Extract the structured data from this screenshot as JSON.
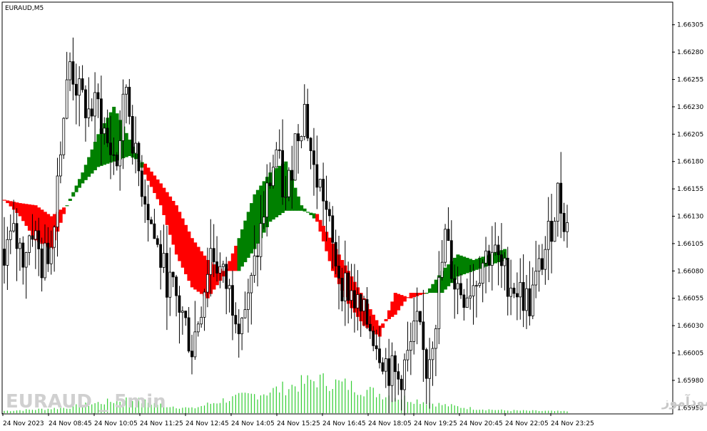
{
  "chart_data": {
    "type": "candlestick",
    "symbol_label": "EURAUD,M5",
    "timeframe": "M5",
    "y_ticks": [
      "1.66305",
      "1.66280",
      "1.66255",
      "1.66230",
      "1.66205",
      "1.66180",
      "1.66155",
      "1.66130",
      "1.66105",
      "1.66080",
      "1.66055",
      "1.66030",
      "1.66005",
      "1.65980",
      "1.65955"
    ],
    "ylim": [
      1.6595,
      1.66325
    ],
    "x_ticks": [
      "24 Nov 2023",
      "24 Nov 08:45",
      "24 Nov 10:05",
      "24 Nov 11:25",
      "24 Nov 12:45",
      "24 Nov 14:05",
      "24 Nov 15:25",
      "24 Nov 16:45",
      "24 Nov 18:05",
      "24 Nov 19:25",
      "24 Nov 20:45",
      "24 Nov 22:05",
      "24 Nov 23:25"
    ],
    "indicator_colors": {
      "up": "#008000",
      "down": "#ff0000"
    },
    "candle_color": "#000000",
    "volume_color": "#32cd32",
    "price_path": [
      [
        0,
        1.661
      ],
      [
        3,
        1.6611
      ],
      [
        6,
        1.66095
      ],
      [
        9,
        1.6612
      ],
      [
        12,
        1.66085
      ],
      [
        15,
        1.66105
      ],
      [
        18,
        1.662
      ],
      [
        21,
        1.6627
      ],
      [
        24,
        1.6624
      ],
      [
        27,
        1.66225
      ],
      [
        30,
        1.6623
      ],
      [
        33,
        1.66195
      ],
      [
        36,
        1.6618
      ],
      [
        39,
        1.6625
      ],
      [
        42,
        1.6618
      ],
      [
        45,
        1.6615
      ],
      [
        48,
        1.6611
      ],
      [
        51,
        1.6608
      ],
      [
        54,
        1.6606
      ],
      [
        57,
        1.6604
      ],
      [
        60,
        1.6601
      ],
      [
        63,
        1.6605
      ],
      [
        66,
        1.661
      ],
      [
        69,
        1.6608
      ],
      [
        72,
        1.6606
      ],
      [
        75,
        1.6604
      ],
      [
        78,
        1.6605
      ],
      [
        81,
        1.661
      ],
      [
        84,
        1.6615
      ],
      [
        87,
        1.6619
      ],
      [
        90,
        1.6614
      ],
      [
        93,
        1.662
      ],
      [
        96,
        1.6623
      ],
      [
        99,
        1.6617
      ],
      [
        102,
        1.6615
      ],
      [
        105,
        1.661
      ],
      [
        108,
        1.6607
      ],
      [
        111,
        1.6606
      ],
      [
        114,
        1.6604
      ],
      [
        117,
        1.6603
      ],
      [
        120,
        1.6601
      ],
      [
        123,
        1.6599
      ],
      [
        126,
        1.6598
      ],
      [
        129,
        1.66
      ],
      [
        132,
        1.6603
      ],
      [
        135,
        1.6599
      ],
      [
        138,
        1.6604
      ],
      [
        141,
        1.6611
      ],
      [
        144,
        1.6607
      ],
      [
        147,
        1.6606
      ],
      [
        150,
        1.6607
      ],
      [
        153,
        1.6609
      ],
      [
        156,
        1.661
      ],
      [
        159,
        1.6608
      ],
      [
        162,
        1.6607
      ],
      [
        165,
        1.6606
      ],
      [
        168,
        1.6605
      ],
      [
        171,
        1.6608
      ],
      [
        174,
        1.6611
      ],
      [
        177,
        1.6615
      ],
      [
        180,
        1.6612
      ]
    ],
    "indicator_band": [
      [
        0,
        1.66145,
        1.66145,
        "down"
      ],
      [
        5,
        1.66142,
        1.6613,
        "down"
      ],
      [
        10,
        1.6614,
        1.66108,
        "down"
      ],
      [
        15,
        1.6613,
        1.661,
        "down"
      ],
      [
        20,
        1.6614,
        1.6614,
        "up"
      ],
      [
        25,
        1.6616,
        1.6617,
        "up"
      ],
      [
        30,
        1.66175,
        1.66205,
        "up"
      ],
      [
        35,
        1.6618,
        1.6623,
        "up"
      ],
      [
        40,
        1.66185,
        1.662,
        "up"
      ],
      [
        45,
        1.66178,
        1.66168,
        "down"
      ],
      [
        50,
        1.6616,
        1.6614,
        "down"
      ],
      [
        55,
        1.6614,
        1.66095,
        "down"
      ],
      [
        60,
        1.6611,
        1.66065,
        "down"
      ],
      [
        65,
        1.6609,
        1.66055,
        "down"
      ],
      [
        70,
        1.6608,
        1.66075,
        "down"
      ],
      [
        75,
        1.6608,
        1.6611,
        "up"
      ],
      [
        80,
        1.661,
        1.6615,
        "up"
      ],
      [
        85,
        1.66125,
        1.6617,
        "up"
      ],
      [
        90,
        1.66135,
        1.6618,
        "up"
      ],
      [
        95,
        1.66135,
        1.6614,
        "up"
      ],
      [
        100,
        1.66132,
        1.66125,
        "down"
      ],
      [
        105,
        1.66105,
        1.6608,
        "down"
      ],
      [
        110,
        1.6608,
        1.6605,
        "down"
      ],
      [
        115,
        1.66055,
        1.6603,
        "down"
      ],
      [
        120,
        1.6603,
        1.6602,
        "down"
      ],
      [
        125,
        1.6604,
        1.6606,
        "down"
      ],
      [
        130,
        1.6606,
        1.66055,
        "down"
      ],
      [
        135,
        1.6606,
        1.6606,
        "up"
      ],
      [
        140,
        1.6606,
        1.6608,
        "up"
      ],
      [
        145,
        1.66075,
        1.66095,
        "up"
      ],
      [
        150,
        1.6608,
        1.6609,
        "up"
      ],
      [
        155,
        1.66085,
        1.66095,
        "up"
      ],
      [
        160,
        1.6609,
        1.661,
        "up"
      ]
    ],
    "volume_profile": [
      [
        0,
        0.05
      ],
      [
        10,
        0.08
      ],
      [
        20,
        0.12
      ],
      [
        30,
        0.22
      ],
      [
        40,
        0.3
      ],
      [
        50,
        0.18
      ],
      [
        60,
        0.1
      ],
      [
        70,
        0.28
      ],
      [
        80,
        0.4
      ],
      [
        90,
        0.55
      ],
      [
        100,
        0.72
      ],
      [
        110,
        0.6
      ],
      [
        120,
        0.42
      ],
      [
        130,
        0.3
      ],
      [
        140,
        0.18
      ],
      [
        150,
        0.1
      ],
      [
        160,
        0.06
      ],
      [
        170,
        0.05
      ],
      [
        180,
        0.04
      ]
    ]
  },
  "watermark": {
    "brand_latin": "EURAUD _ 5min",
    "brand_persian": "انتشار در سایت سودآموز"
  }
}
